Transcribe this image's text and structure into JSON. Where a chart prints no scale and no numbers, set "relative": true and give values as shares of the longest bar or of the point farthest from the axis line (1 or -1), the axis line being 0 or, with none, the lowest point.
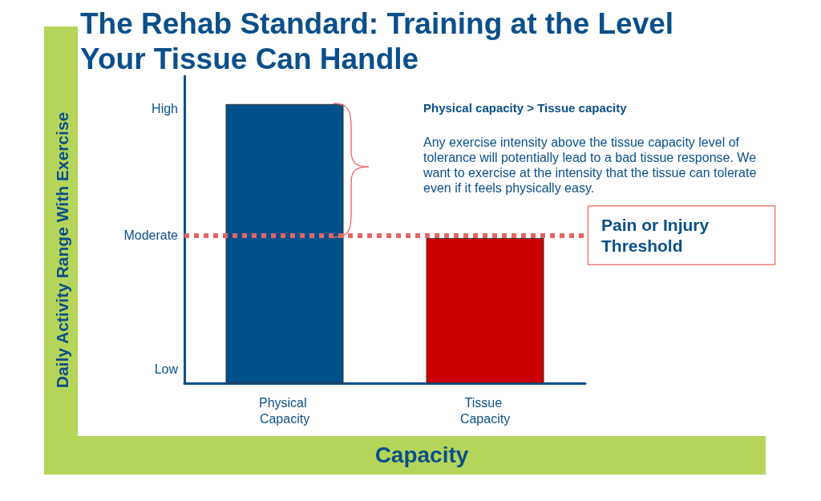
{
  "chart_data": {
    "type": "bar",
    "title": "The Rehab Standard: Training at the Level Your Tissue Can Handle",
    "xlabel": "Capacity",
    "categories": [
      "Physical Capacity",
      "Tissue Capacity"
    ],
    "values": [
      1,
      0.52
    ],
    "colors": [
      "#00508a",
      "#cc0000"
    ],
    "relative": true,
    "ref_lines": [
      {
        "axis": "y",
        "value": 0.53,
        "label": "Pain or Injury Threshold",
        "color": "#e06666",
        "line_style": "dotted"
      }
    ],
    "annotations": [
      "Physical capacity > Tissue capacity",
      "Any exercise intensity above the tissue capacity level of tolerance will potentially lead to a bad tissue response.  We want to exercise at the intensity that the tissue can tolerate even if it feels physically easy.",
      "Daily Activity Range With Exercise",
      "High",
      "Moderate",
      "Low"
    ],
    "grid": false
  }
}
